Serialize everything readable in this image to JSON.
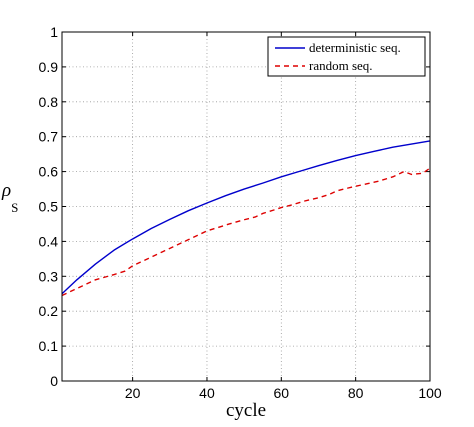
{
  "chart_data": {
    "type": "line",
    "title": "",
    "xlabel": "cycle",
    "ylabel_main": "ρ",
    "ylabel_sub": "S",
    "xlim": [
      1,
      100
    ],
    "ylim": [
      0,
      1
    ],
    "xticks": [
      20,
      40,
      60,
      80,
      100
    ],
    "yticks": [
      0,
      0.1,
      0.2,
      0.3,
      0.4,
      0.5,
      0.6,
      0.7,
      0.8,
      0.9,
      1
    ],
    "ytick_labels": [
      "0",
      "0.1",
      "0.2",
      "0.3",
      "0.4",
      "0.5",
      "0.6",
      "0.7",
      "0.8",
      "0.9",
      "1"
    ],
    "grid": true,
    "legend_position": "top-right",
    "series": [
      {
        "name": "deterministic seq.",
        "color": "#0000cc",
        "style": "solid",
        "x": [
          1,
          5,
          10,
          15,
          20,
          25,
          30,
          35,
          40,
          45,
          50,
          55,
          60,
          65,
          70,
          75,
          80,
          85,
          90,
          95,
          100
        ],
        "y": [
          0.25,
          0.29,
          0.335,
          0.375,
          0.407,
          0.437,
          0.463,
          0.488,
          0.51,
          0.531,
          0.55,
          0.567,
          0.585,
          0.601,
          0.617,
          0.632,
          0.646,
          0.658,
          0.67,
          0.679,
          0.688
        ]
      },
      {
        "name": "random seq.",
        "color": "#dd0000",
        "style": "dashed",
        "x": [
          1,
          5,
          10,
          15,
          18,
          20,
          25,
          28,
          32,
          35,
          38,
          40,
          43,
          46,
          50,
          53,
          55,
          58,
          60,
          63,
          66,
          70,
          73,
          75,
          78,
          80,
          83,
          86,
          90,
          93,
          95,
          98,
          100
        ],
        "y": [
          0.245,
          0.265,
          0.29,
          0.305,
          0.315,
          0.33,
          0.355,
          0.37,
          0.39,
          0.405,
          0.42,
          0.43,
          0.44,
          0.45,
          0.462,
          0.47,
          0.48,
          0.49,
          0.497,
          0.505,
          0.515,
          0.525,
          0.535,
          0.545,
          0.553,
          0.558,
          0.565,
          0.572,
          0.585,
          0.6,
          0.592,
          0.595,
          0.61
        ]
      }
    ]
  }
}
